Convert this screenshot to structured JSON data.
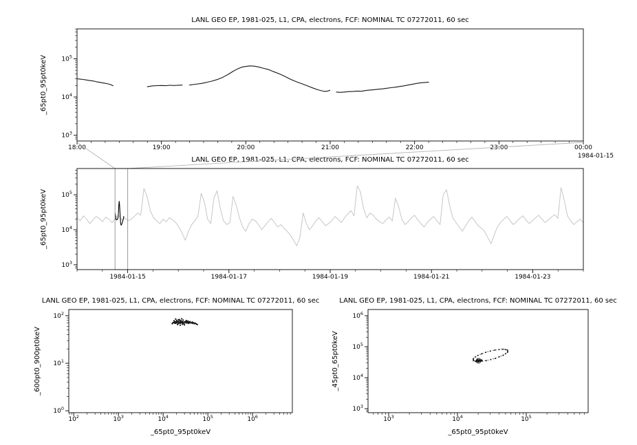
{
  "page": {
    "background": "#ffffff"
  },
  "colors": {
    "axis": "#000000",
    "top_series": "#141414",
    "context_series": "#c6c6c6",
    "highlight_series": "#000000",
    "connector": "#b4b4b4",
    "zoom_box": "#999999",
    "scatter": "#141414"
  },
  "chart_data": [
    {
      "id": "top",
      "type": "line",
      "title": "LANL GEO EP, 1981-025, L1, CPA, electrons, FCF: NOMINAL TC 07272011, 60 sec",
      "ylabel": "_65pt0_95pt0keV",
      "x_unit": "time of day (hours)",
      "xlim": [
        18,
        24
      ],
      "x_ticks": [
        {
          "v": 18,
          "label": "18:00"
        },
        {
          "v": 19,
          "label": "19:00"
        },
        {
          "v": 20,
          "label": "20:00"
        },
        {
          "v": 21,
          "label": "21:00"
        },
        {
          "v": 22,
          "label": "22:00"
        },
        {
          "v": 23,
          "label": "23:00"
        },
        {
          "v": 24,
          "label": "00:00"
        }
      ],
      "x_minor_step": 0.166667,
      "corner_label": "1984-01-15",
      "ylog_lim": [
        2.85,
        5.78
      ],
      "y_ticks_exp": [
        3,
        4,
        5
      ],
      "segments": [
        [
          [
            18.0,
            30000
          ],
          [
            18.03,
            29500
          ],
          [
            18.07,
            28800
          ],
          [
            18.1,
            28000
          ],
          [
            18.13,
            27400
          ],
          [
            18.17,
            26600
          ],
          [
            18.2,
            26000
          ],
          [
            18.23,
            25000
          ],
          [
            18.27,
            24200
          ],
          [
            18.3,
            23500
          ],
          [
            18.33,
            22800
          ],
          [
            18.37,
            22000
          ],
          [
            18.4,
            21000
          ],
          [
            18.43,
            19500
          ]
        ],
        [
          [
            18.83,
            18500
          ],
          [
            18.87,
            19200
          ],
          [
            18.9,
            19600
          ],
          [
            18.95,
            19800
          ],
          [
            19.0,
            20000
          ],
          [
            19.05,
            19700
          ],
          [
            19.1,
            20200
          ],
          [
            19.15,
            20000
          ],
          [
            19.2,
            20300
          ],
          [
            19.25,
            20500
          ]
        ],
        [
          [
            19.33,
            20500
          ],
          [
            19.4,
            21500
          ],
          [
            19.47,
            22500
          ],
          [
            19.53,
            24000
          ],
          [
            19.6,
            26000
          ],
          [
            19.67,
            29000
          ],
          [
            19.73,
            33000
          ],
          [
            19.8,
            40000
          ],
          [
            19.85,
            47000
          ],
          [
            19.9,
            54000
          ],
          [
            19.95,
            60000
          ],
          [
            20.0,
            63000
          ],
          [
            20.05,
            65000
          ],
          [
            20.1,
            64000
          ],
          [
            20.15,
            61000
          ],
          [
            20.2,
            57000
          ],
          [
            20.27,
            52000
          ],
          [
            20.33,
            46000
          ],
          [
            20.4,
            40000
          ],
          [
            20.47,
            34000
          ],
          [
            20.53,
            29000
          ],
          [
            20.6,
            25000
          ],
          [
            20.67,
            22000
          ],
          [
            20.73,
            19500
          ],
          [
            20.8,
            17000
          ],
          [
            20.85,
            15500
          ],
          [
            20.9,
            14500
          ],
          [
            20.93,
            14000
          ],
          [
            20.97,
            14300
          ],
          [
            21.0,
            15000
          ]
        ],
        [
          [
            21.07,
            13500
          ],
          [
            21.12,
            13200
          ],
          [
            21.17,
            13500
          ],
          [
            21.22,
            13800
          ],
          [
            21.27,
            14000
          ],
          [
            21.32,
            14300
          ],
          [
            21.37,
            14100
          ],
          [
            21.42,
            14800
          ],
          [
            21.47,
            15200
          ],
          [
            21.52,
            15500
          ],
          [
            21.57,
            16000
          ],
          [
            21.62,
            16300
          ],
          [
            21.67,
            16900
          ],
          [
            21.72,
            17500
          ],
          [
            21.77,
            18000
          ],
          [
            21.82,
            18800
          ],
          [
            21.87,
            19500
          ],
          [
            21.92,
            20500
          ],
          [
            21.97,
            21400
          ],
          [
            22.02,
            22500
          ],
          [
            22.07,
            23500
          ],
          [
            22.12,
            24000
          ],
          [
            22.17,
            24500
          ]
        ]
      ]
    },
    {
      "id": "context",
      "type": "line",
      "title": "LANL GEO EP, 1981-025, L1, CPA, electrons, FCF: NOMINAL TC 07272011, 60 sec",
      "ylabel": "_65pt0_95pt0keV",
      "x_unit": "days from 1984-01-14",
      "xlim": [
        0,
        10
      ],
      "x_ticks": [
        {
          "v": 1,
          "label": "1984-01-15"
        },
        {
          "v": 3,
          "label": "1984-01-17"
        },
        {
          "v": 5,
          "label": "1984-01-19"
        },
        {
          "v": 7,
          "label": "1984-01-21"
        },
        {
          "v": 9,
          "label": "1984-01-23"
        }
      ],
      "x_minor_step": 0.5,
      "ylog_lim": [
        2.86,
        5.75
      ],
      "y_ticks_exp": [
        3,
        4,
        5
      ],
      "series_x0": 0,
      "series_x1": 10,
      "series_values": [
        22000,
        18000,
        25000,
        20000,
        15000,
        19000,
        24000,
        21000,
        17000,
        23000,
        20000,
        16000,
        21000,
        26000,
        19000,
        22000,
        18000,
        20000,
        24000,
        30000,
        26000,
        150000,
        90000,
        35000,
        22000,
        18000,
        15000,
        20000,
        17000,
        22000,
        19000,
        16000,
        12000,
        8000,
        5000,
        9000,
        14000,
        18000,
        25000,
        110000,
        60000,
        20000,
        15000,
        80000,
        130000,
        40000,
        18000,
        14000,
        16000,
        90000,
        50000,
        22000,
        12000,
        9000,
        15000,
        20000,
        18000,
        14000,
        10000,
        13000,
        17000,
        21000,
        16000,
        12000,
        14000,
        11000,
        9000,
        7000,
        5000,
        3500,
        6000,
        30000,
        15000,
        10000,
        13000,
        18000,
        22000,
        17000,
        13000,
        15000,
        18000,
        24000,
        20000,
        16000,
        22000,
        28000,
        35000,
        25000,
        180000,
        120000,
        40000,
        22000,
        30000,
        26000,
        20000,
        17000,
        15000,
        19000,
        23000,
        18000,
        80000,
        45000,
        20000,
        14000,
        17000,
        22000,
        26000,
        19000,
        15000,
        12000,
        16000,
        20000,
        24000,
        18000,
        14000,
        100000,
        140000,
        50000,
        22000,
        16000,
        12000,
        9000,
        13000,
        18000,
        23000,
        17000,
        13000,
        11000,
        9000,
        6000,
        4000,
        7000,
        12000,
        16000,
        20000,
        24000,
        18000,
        14000,
        17000,
        21000,
        25000,
        19000,
        15000,
        18000,
        22000,
        26000,
        20000,
        16000,
        19000,
        23000,
        27000,
        21000,
        160000,
        70000,
        25000,
        18000,
        14000,
        17000,
        20000,
        16000
      ],
      "highlight": [
        [
          0.75,
          30000
        ],
        [
          0.757,
          27500
        ],
        [
          0.764,
          22500
        ],
        [
          0.768,
          20000
        ],
        [
          0.785,
          19000
        ],
        [
          0.792,
          20000
        ],
        [
          0.799,
          20300
        ],
        [
          0.806,
          20500
        ],
        [
          0.813,
          24000
        ],
        [
          0.819,
          33000
        ],
        [
          0.825,
          50000
        ],
        [
          0.833,
          65000
        ],
        [
          0.84,
          52000
        ],
        [
          0.847,
          34000
        ],
        [
          0.854,
          22000
        ],
        [
          0.861,
          15000
        ],
        [
          0.871,
          13500
        ],
        [
          0.882,
          14300
        ],
        [
          0.894,
          16000
        ],
        [
          0.906,
          18500
        ],
        [
          0.915,
          20500
        ],
        [
          0.924,
          24500
        ]
      ],
      "zoom_region": [
        0.75,
        1.0
      ]
    },
    {
      "id": "scatter1",
      "type": "scatter",
      "title": "LANL GEO EP, 1981-025, L1, CPA, electrons, FCF: NOMINAL TC 07272011, 60 sec",
      "xlabel": "_65pt0_95pt0keV",
      "ylabel": "_600pt0_900pt0keV",
      "xlog_lim": [
        1.89,
        6.89
      ],
      "x_ticks_exp": [
        2,
        3,
        4,
        5,
        6
      ],
      "ylog_lim": [
        -0.04,
        2.13
      ],
      "y_ticks_exp": [
        0,
        1,
        2
      ],
      "points": [
        [
          16000,
          68
        ],
        [
          17000,
          72
        ],
        [
          18000,
          70
        ],
        [
          18500,
          75
        ],
        [
          19000,
          69
        ],
        [
          19500,
          74
        ],
        [
          20000,
          71
        ],
        [
          20500,
          77
        ],
        [
          21000,
          73
        ],
        [
          21500,
          68
        ],
        [
          22000,
          75
        ],
        [
          22500,
          70
        ],
        [
          23000,
          78
        ],
        [
          23500,
          72
        ],
        [
          24000,
          69
        ],
        [
          24500,
          74
        ],
        [
          25000,
          71
        ],
        [
          25500,
          76
        ],
        [
          26000,
          73
        ],
        [
          27000,
          70
        ],
        [
          27500,
          75
        ],
        [
          28000,
          72
        ],
        [
          29000,
          68
        ],
        [
          30000,
          74
        ],
        [
          31000,
          71
        ],
        [
          32000,
          76
        ],
        [
          33000,
          73
        ],
        [
          34000,
          70
        ],
        [
          35000,
          75
        ],
        [
          36000,
          72
        ],
        [
          37000,
          69
        ],
        [
          38000,
          73
        ],
        [
          39000,
          71
        ],
        [
          40000,
          74
        ],
        [
          42000,
          70
        ],
        [
          44000,
          72
        ],
        [
          46000,
          69
        ],
        [
          48000,
          71
        ],
        [
          50000,
          68
        ],
        [
          52000,
          70
        ],
        [
          55000,
          67
        ],
        [
          58000,
          65
        ],
        [
          20000,
          80
        ],
        [
          22000,
          82
        ],
        [
          25000,
          79
        ],
        [
          28000,
          81
        ],
        [
          21000,
          65
        ],
        [
          24000,
          63
        ],
        [
          27000,
          66
        ],
        [
          30000,
          64
        ],
        [
          19000,
          85
        ],
        [
          23000,
          83
        ],
        [
          26000,
          86
        ],
        [
          17500,
          78
        ],
        [
          33000,
          79
        ],
        [
          36000,
          77
        ],
        [
          40000,
          75
        ],
        [
          45000,
          73
        ],
        [
          16500,
          71
        ],
        [
          18200,
          74
        ]
      ]
    },
    {
      "id": "scatter2",
      "type": "scatter",
      "title": "LANL GEO EP, 1981-025, L1, CPA, electrons, FCF: NOMINAL TC 07272011, 60 sec",
      "xlabel": "_65pt0_95pt0keV",
      "ylabel": "_45pt0_65pt0keV",
      "xlog_lim": [
        2.7,
        5.9
      ],
      "x_ticks_exp": [
        3,
        4,
        5
      ],
      "ylog_lim": [
        2.87,
        6.2
      ],
      "y_ticks_exp": [
        3,
        4,
        5,
        6
      ],
      "loop": [
        [
          53200,
          78000
        ],
        [
          50000,
          81000
        ],
        [
          45600,
          82800
        ],
        [
          40300,
          80800
        ],
        [
          34900,
          77800
        ],
        [
          30000,
          72000
        ],
        [
          25800,
          65800
        ],
        [
          22500,
          59000
        ],
        [
          19800,
          52400
        ],
        [
          18300,
          46800
        ],
        [
          17100,
          41700
        ],
        [
          17000,
          38300
        ],
        [
          17100,
          35300
        ],
        [
          18400,
          34200
        ],
        [
          20000,
          33300
        ],
        [
          22900,
          34300
        ],
        [
          26100,
          35400
        ],
        [
          30500,
          38500
        ],
        [
          35400,
          41900
        ],
        [
          40500,
          47000
        ],
        [
          46000,
          52600
        ],
        [
          50000,
          59000
        ],
        [
          53300,
          66100
        ],
        [
          53800,
          72000
        ]
      ],
      "cluster": [
        [
          19000,
          33000
        ],
        [
          20000,
          34000
        ],
        [
          21000,
          35000
        ],
        [
          19500,
          35500
        ],
        [
          20500,
          33500
        ],
        [
          18800,
          34500
        ],
        [
          21500,
          34200
        ],
        [
          20200,
          32800
        ],
        [
          19200,
          36000
        ],
        [
          21000,
          36500
        ],
        [
          22000,
          35500
        ],
        [
          18500,
          33500
        ],
        [
          20800,
          37000
        ],
        [
          19800,
          37500
        ],
        [
          22500,
          36800
        ]
      ]
    }
  ]
}
